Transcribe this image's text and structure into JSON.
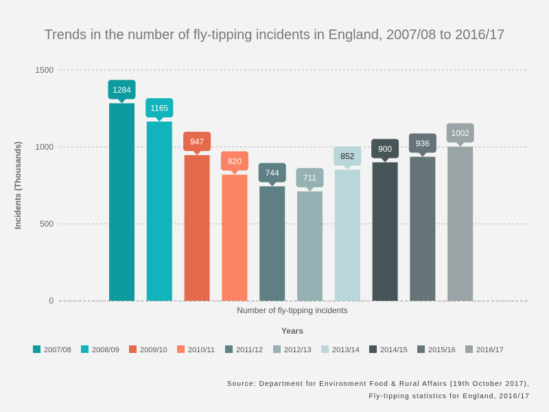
{
  "chart_data": {
    "type": "bar",
    "title": "Trends in the number of fly-tipping incidents in England, 2007/08 to 2016/17",
    "category_label": "Number of fly-tipping incidents",
    "xlabel": "Years",
    "ylabel": "Incidents (Thousands)",
    "ylim": [
      0,
      1500
    ],
    "yticks": [
      0,
      500,
      1000,
      1500
    ],
    "grid": true,
    "legend_position": "bottom",
    "series": [
      {
        "name": "2007/08",
        "value": 1284,
        "color": "#0e9a9e",
        "label_color": "#ffffff"
      },
      {
        "name": "2008/09",
        "value": 1165,
        "color": "#11b4bc",
        "label_color": "#ffffff"
      },
      {
        "name": "2009/10",
        "value": 947,
        "color": "#e5694b",
        "label_color": "#ffffff"
      },
      {
        "name": "2010/11",
        "value": 820,
        "color": "#fa8363",
        "label_color": "#ffffff"
      },
      {
        "name": "2011/12",
        "value": 744,
        "color": "#5e8084",
        "label_color": "#ffffff"
      },
      {
        "name": "2012/13",
        "value": 711,
        "color": "#95b1b3",
        "label_color": "#ffffff"
      },
      {
        "name": "2013/14",
        "value": 852,
        "color": "#b9d6da",
        "label_color": "#222222"
      },
      {
        "name": "2014/15",
        "value": 900,
        "color": "#475458",
        "label_color": "#ffffff"
      },
      {
        "name": "2015/16",
        "value": 936,
        "color": "#657478",
        "label_color": "#ffffff"
      },
      {
        "name": "2016/17",
        "value": 1002,
        "color": "#9aa3a5",
        "label_color": "#ffffff"
      }
    ]
  },
  "source": {
    "line1": "Source: Department for Environment Food & Rural Affairs (19th October 2017),",
    "line2": "Fly-tipping statistics for England, 2016/17"
  }
}
